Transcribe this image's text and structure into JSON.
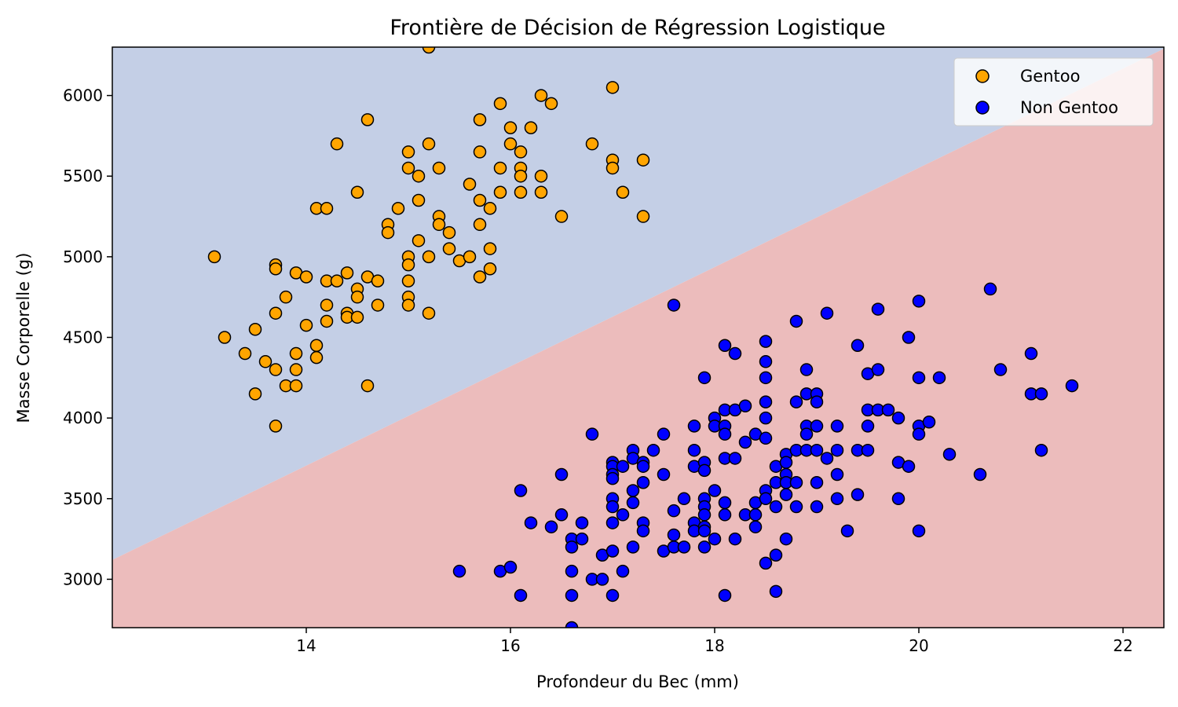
{
  "chart_data": {
    "type": "scatter",
    "title": "Frontière de Décision de Régression Logistique",
    "xlabel": "Profondeur du Bec (mm)",
    "ylabel": "Masse Corporelle (g)",
    "xlim": [
      12.1,
      22.4
    ],
    "ylim": [
      2700,
      6300
    ],
    "xticks": [
      14,
      16,
      18,
      20,
      22
    ],
    "yticks": [
      3000,
      3500,
      4000,
      4500,
      5000,
      5500,
      6000
    ],
    "grid": false,
    "legend_position": "top-right",
    "decision_boundary": {
      "x": [
        12.1,
        22.4
      ],
      "y": [
        3120,
        6290
      ],
      "region_above": "Gentoo",
      "region_below": "Non Gentoo",
      "color_above": "#c4cfe6",
      "color_below": "#ecbcbc"
    },
    "series": [
      {
        "name": "Gentoo",
        "color": "#ffa500",
        "points": [
          [
            13.1,
            5000
          ],
          [
            13.2,
            4500
          ],
          [
            13.4,
            4400
          ],
          [
            13.5,
            4550
          ],
          [
            13.5,
            4150
          ],
          [
            13.6,
            4350
          ],
          [
            13.7,
            4950
          ],
          [
            13.7,
            4925
          ],
          [
            13.7,
            4650
          ],
          [
            13.7,
            4300
          ],
          [
            13.7,
            3950
          ],
          [
            13.8,
            4750
          ],
          [
            13.8,
            4200
          ],
          [
            13.9,
            4900
          ],
          [
            13.9,
            4400
          ],
          [
            13.9,
            4300
          ],
          [
            13.9,
            4200
          ],
          [
            14.0,
            4875
          ],
          [
            14.0,
            4575
          ],
          [
            14.1,
            5300
          ],
          [
            14.1,
            4450
          ],
          [
            14.1,
            4375
          ],
          [
            14.2,
            5300
          ],
          [
            14.2,
            4850
          ],
          [
            14.2,
            4700
          ],
          [
            14.2,
            4600
          ],
          [
            14.3,
            5700
          ],
          [
            14.3,
            4850
          ],
          [
            14.4,
            4900
          ],
          [
            14.4,
            4650
          ],
          [
            14.4,
            4625
          ],
          [
            14.5,
            5400
          ],
          [
            14.5,
            4800
          ],
          [
            14.5,
            4750
          ],
          [
            14.5,
            4625
          ],
          [
            14.6,
            5850
          ],
          [
            14.6,
            4875
          ],
          [
            14.6,
            4200
          ],
          [
            14.7,
            4850
          ],
          [
            14.7,
            4700
          ],
          [
            14.8,
            5200
          ],
          [
            14.8,
            5150
          ],
          [
            14.9,
            5300
          ],
          [
            15.0,
            5650
          ],
          [
            15.0,
            5550
          ],
          [
            15.0,
            5000
          ],
          [
            15.0,
            4950
          ],
          [
            15.0,
            4850
          ],
          [
            15.0,
            4750
          ],
          [
            15.0,
            4700
          ],
          [
            15.1,
            5500
          ],
          [
            15.1,
            5350
          ],
          [
            15.1,
            5100
          ],
          [
            15.2,
            6300
          ],
          [
            15.2,
            5700
          ],
          [
            15.2,
            5000
          ],
          [
            15.2,
            4650
          ],
          [
            15.3,
            5550
          ],
          [
            15.3,
            5250
          ],
          [
            15.3,
            5200
          ],
          [
            15.4,
            5150
          ],
          [
            15.4,
            5050
          ],
          [
            15.5,
            4975
          ],
          [
            15.6,
            5450
          ],
          [
            15.6,
            5000
          ],
          [
            15.7,
            5850
          ],
          [
            15.7,
            5650
          ],
          [
            15.7,
            5350
          ],
          [
            15.7,
            5200
          ],
          [
            15.7,
            4875
          ],
          [
            15.8,
            5300
          ],
          [
            15.8,
            5050
          ],
          [
            15.8,
            4925
          ],
          [
            15.9,
            5950
          ],
          [
            15.9,
            5550
          ],
          [
            15.9,
            5400
          ],
          [
            16.0,
            5800
          ],
          [
            16.0,
            5700
          ],
          [
            16.1,
            5650
          ],
          [
            16.1,
            5550
          ],
          [
            16.1,
            5500
          ],
          [
            16.1,
            5400
          ],
          [
            16.2,
            5800
          ],
          [
            16.3,
            6000
          ],
          [
            16.3,
            5500
          ],
          [
            16.3,
            5400
          ],
          [
            16.4,
            5950
          ],
          [
            16.5,
            5250
          ],
          [
            16.8,
            5700
          ],
          [
            17.0,
            6050
          ],
          [
            17.0,
            5600
          ],
          [
            17.0,
            5550
          ],
          [
            17.1,
            5400
          ],
          [
            17.3,
            5600
          ],
          [
            17.3,
            5250
          ]
        ]
      },
      {
        "name": "Non Gentoo",
        "color": "#0000ff",
        "points": [
          [
            15.5,
            3050
          ],
          [
            15.9,
            3050
          ],
          [
            16.0,
            3075
          ],
          [
            16.1,
            3550
          ],
          [
            16.1,
            2900
          ],
          [
            16.2,
            3350
          ],
          [
            16.4,
            3325
          ],
          [
            16.5,
            3650
          ],
          [
            16.5,
            3400
          ],
          [
            16.6,
            3250
          ],
          [
            16.6,
            3200
          ],
          [
            16.6,
            3050
          ],
          [
            16.6,
            2900
          ],
          [
            16.6,
            2700
          ],
          [
            16.7,
            3350
          ],
          [
            16.7,
            3250
          ],
          [
            16.8,
            3900
          ],
          [
            16.8,
            3000
          ],
          [
            16.9,
            3150
          ],
          [
            16.9,
            3000
          ],
          [
            17.0,
            3725
          ],
          [
            17.0,
            3700
          ],
          [
            17.0,
            3650
          ],
          [
            17.0,
            3625
          ],
          [
            17.0,
            3500
          ],
          [
            17.0,
            3450
          ],
          [
            17.0,
            3350
          ],
          [
            17.0,
            3175
          ],
          [
            17.0,
            2900
          ],
          [
            17.1,
            3700
          ],
          [
            17.1,
            3400
          ],
          [
            17.1,
            3050
          ],
          [
            17.2,
            3800
          ],
          [
            17.2,
            3750
          ],
          [
            17.2,
            3550
          ],
          [
            17.2,
            3475
          ],
          [
            17.2,
            3200
          ],
          [
            17.3,
            3725
          ],
          [
            17.3,
            3700
          ],
          [
            17.3,
            3600
          ],
          [
            17.3,
            3350
          ],
          [
            17.3,
            3300
          ],
          [
            17.4,
            3800
          ],
          [
            17.5,
            3900
          ],
          [
            17.5,
            3650
          ],
          [
            17.5,
            3175
          ],
          [
            17.6,
            4700
          ],
          [
            17.6,
            3425
          ],
          [
            17.6,
            3275
          ],
          [
            17.6,
            3200
          ],
          [
            17.7,
            3500
          ],
          [
            17.7,
            3200
          ],
          [
            17.8,
            3950
          ],
          [
            17.8,
            3800
          ],
          [
            17.8,
            3700
          ],
          [
            17.8,
            3350
          ],
          [
            17.8,
            3300
          ],
          [
            17.9,
            4250
          ],
          [
            17.9,
            3725
          ],
          [
            17.9,
            3675
          ],
          [
            17.9,
            3500
          ],
          [
            17.9,
            3450
          ],
          [
            17.9,
            3400
          ],
          [
            17.9,
            3325
          ],
          [
            17.9,
            3300
          ],
          [
            17.9,
            3200
          ],
          [
            18.0,
            4000
          ],
          [
            18.0,
            3950
          ],
          [
            18.0,
            3550
          ],
          [
            18.0,
            3250
          ],
          [
            18.1,
            4450
          ],
          [
            18.1,
            4050
          ],
          [
            18.1,
            3950
          ],
          [
            18.1,
            3900
          ],
          [
            18.1,
            3750
          ],
          [
            18.1,
            3475
          ],
          [
            18.1,
            3400
          ],
          [
            18.1,
            2900
          ],
          [
            18.2,
            4400
          ],
          [
            18.2,
            4050
          ],
          [
            18.2,
            3750
          ],
          [
            18.2,
            3250
          ],
          [
            18.3,
            4075
          ],
          [
            18.3,
            3850
          ],
          [
            18.3,
            3400
          ],
          [
            18.4,
            3900
          ],
          [
            18.4,
            3475
          ],
          [
            18.4,
            3400
          ],
          [
            18.4,
            3325
          ],
          [
            18.5,
            4475
          ],
          [
            18.5,
            4350
          ],
          [
            18.5,
            4250
          ],
          [
            18.5,
            4100
          ],
          [
            18.5,
            4000
          ],
          [
            18.5,
            3875
          ],
          [
            18.5,
            3550
          ],
          [
            18.5,
            3500
          ],
          [
            18.5,
            3100
          ],
          [
            18.6,
            3700
          ],
          [
            18.6,
            3600
          ],
          [
            18.6,
            3450
          ],
          [
            18.6,
            3150
          ],
          [
            18.6,
            2925
          ],
          [
            18.7,
            3775
          ],
          [
            18.7,
            3725
          ],
          [
            18.7,
            3650
          ],
          [
            18.7,
            3600
          ],
          [
            18.7,
            3525
          ],
          [
            18.7,
            3250
          ],
          [
            18.8,
            4600
          ],
          [
            18.8,
            4100
          ],
          [
            18.8,
            3800
          ],
          [
            18.8,
            3600
          ],
          [
            18.8,
            3450
          ],
          [
            18.9,
            4300
          ],
          [
            18.9,
            4150
          ],
          [
            18.9,
            3950
          ],
          [
            18.9,
            3900
          ],
          [
            18.9,
            3800
          ],
          [
            19.0,
            4150
          ],
          [
            19.0,
            4100
          ],
          [
            19.0,
            3950
          ],
          [
            19.0,
            3800
          ],
          [
            19.0,
            3600
          ],
          [
            19.0,
            3450
          ],
          [
            19.1,
            4650
          ],
          [
            19.1,
            3750
          ],
          [
            19.2,
            3950
          ],
          [
            19.2,
            3800
          ],
          [
            19.2,
            3650
          ],
          [
            19.2,
            3500
          ],
          [
            19.3,
            3300
          ],
          [
            19.4,
            4450
          ],
          [
            19.4,
            3800
          ],
          [
            19.4,
            3525
          ],
          [
            19.5,
            4275
          ],
          [
            19.5,
            4050
          ],
          [
            19.5,
            3950
          ],
          [
            19.5,
            3800
          ],
          [
            19.6,
            4675
          ],
          [
            19.6,
            4300
          ],
          [
            19.6,
            4050
          ],
          [
            19.7,
            4050
          ],
          [
            19.8,
            4000
          ],
          [
            19.8,
            3725
          ],
          [
            19.8,
            3500
          ],
          [
            19.9,
            4500
          ],
          [
            19.9,
            3700
          ],
          [
            20.0,
            4725
          ],
          [
            20.0,
            4250
          ],
          [
            20.0,
            3950
          ],
          [
            20.0,
            3900
          ],
          [
            20.0,
            3300
          ],
          [
            20.1,
            3975
          ],
          [
            20.2,
            4250
          ],
          [
            20.3,
            3775
          ],
          [
            20.6,
            3650
          ],
          [
            20.7,
            4800
          ],
          [
            20.8,
            4300
          ],
          [
            21.1,
            4400
          ],
          [
            21.1,
            4150
          ],
          [
            21.2,
            4150
          ],
          [
            21.2,
            3800
          ],
          [
            21.5,
            4200
          ]
        ]
      }
    ]
  }
}
